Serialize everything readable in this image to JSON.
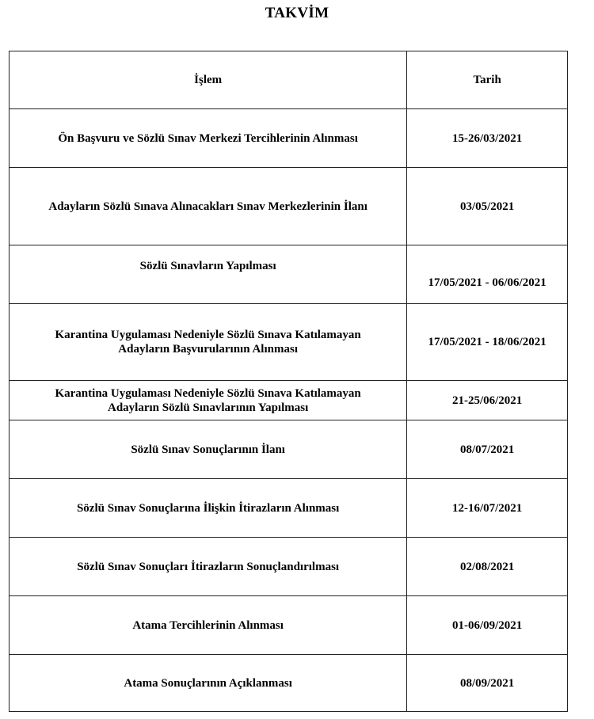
{
  "title": "TAKVİM",
  "headers": {
    "islem": "İşlem",
    "tarih": "Tarih"
  },
  "rows": [
    {
      "islem": "Ön Başvuru ve Sözlü Sınav Merkezi Tercihlerinin Alınması",
      "tarih": "15-26/03/2021"
    },
    {
      "islem": "Adayların Sözlü Sınava Alınacakları Sınav Merkezlerinin İlanı",
      "tarih": "03/05/2021"
    },
    {
      "islem": "Sözlü Sınavların Yapılması",
      "tarih": "17/05/2021 - 06/06/2021"
    },
    {
      "islem": "Karantina Uygulaması Nedeniyle Sözlü Sınava Katılamayan Adayların Başvurularının Alınması",
      "tarih": "17/05/2021 - 18/06/2021"
    },
    {
      "islem": "Karantina Uygulaması Nedeniyle Sözlü Sınava Katılamayan Adayların Sözlü Sınavlarının Yapılması",
      "tarih": "21-25/06/2021"
    },
    {
      "islem": "Sözlü Sınav Sonuçlarının İlanı",
      "tarih": "08/07/2021"
    },
    {
      "islem": "Sözlü Sınav Sonuçlarına İlişkin İtirazların Alınması",
      "tarih": "12-16/07/2021"
    },
    {
      "islem": "Sözlü Sınav Sonuçları İtirazların Sonuçlandırılması",
      "tarih": "02/08/2021"
    },
    {
      "islem": "Atama Tercihlerinin Alınması",
      "tarih": "01-06/09/2021"
    },
    {
      "islem": "Atama Sonuçlarının Açıklanması",
      "tarih": "08/09/2021"
    }
  ]
}
